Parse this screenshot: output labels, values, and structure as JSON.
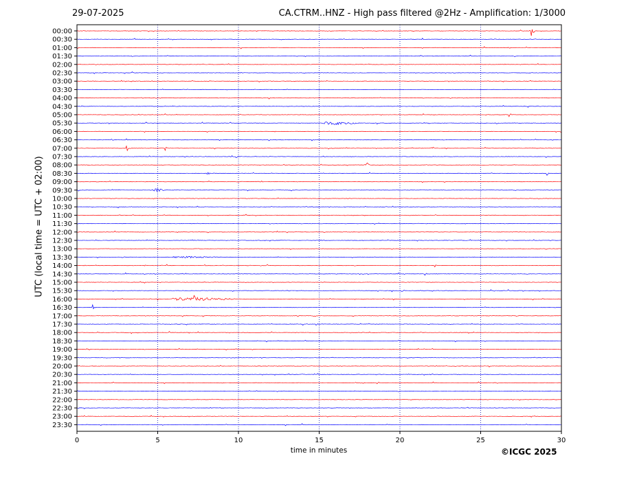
{
  "header": {
    "date": "29-07-2025",
    "title": "CA.CTRM..HNZ - High pass filtered @2Hz - Amplification: 1/3000"
  },
  "footer": {
    "copyright": "©ICGC 2025"
  },
  "colors": {
    "red_trace": "#ff0000",
    "blue_trace": "#0000ff",
    "grid": "#0000aa",
    "axes": "#000000"
  },
  "chart_data": {
    "type": "line",
    "title": "CA.CTRM..HNZ - High pass filtered @2Hz - Amplification: 1/3000",
    "xlabel": "time in minutes",
    "ylabel": "UTC (local time = UTC + 02:00)",
    "xlim": [
      0,
      30
    ],
    "x_ticks": [
      0,
      5,
      10,
      15,
      20,
      25,
      30
    ],
    "x_tick_labels": [
      "0",
      "5",
      "10",
      "15",
      "20",
      "25",
      "30"
    ],
    "vertical_grid_minutes": [
      5,
      10,
      15,
      20,
      25
    ],
    "grid_style": "dotted",
    "rows": [
      "00:00",
      "00:30",
      "01:00",
      "01:30",
      "02:00",
      "02:30",
      "03:00",
      "03:30",
      "04:00",
      "04:30",
      "05:00",
      "05:30",
      "06:00",
      "06:30",
      "07:00",
      "07:30",
      "08:00",
      "08:30",
      "09:00",
      "09:30",
      "10:00",
      "10:30",
      "11:00",
      "11:30",
      "12:00",
      "12:30",
      "13:00",
      "13:30",
      "14:00",
      "14:30",
      "15:00",
      "15:30",
      "16:00",
      "16:30",
      "17:00",
      "17:30",
      "18:00",
      "18:30",
      "19:00",
      "19:30",
      "20:00",
      "20:30",
      "21:00",
      "21:30",
      "22:00",
      "22:30",
      "23:00",
      "23:30"
    ],
    "row_colors_cycle": [
      "red",
      "blue"
    ],
    "events": [
      {
        "row": "00:00",
        "minute": 28.2,
        "amplitude": 9
      },
      {
        "row": "05:00",
        "minute": 26.8,
        "amplitude": 3
      },
      {
        "row": "05:30",
        "minute": 15.3,
        "duration": 2.2,
        "amplitude": 2.5
      },
      {
        "row": "06:30",
        "minute": 2.2,
        "amplitude": 2
      },
      {
        "row": "07:00",
        "minute": 3.1,
        "amplitude": 4
      },
      {
        "row": "07:00",
        "minute": 5.5,
        "amplitude": 8
      },
      {
        "row": "08:00",
        "minute": 18.0,
        "amplitude": 3
      },
      {
        "row": "08:30",
        "minute": 8.1,
        "amplitude": 2.5
      },
      {
        "row": "08:30",
        "minute": 29.1,
        "amplitude": 3
      },
      {
        "row": "09:30",
        "minute": 4.6,
        "duration": 0.8,
        "amplitude": 2.5
      },
      {
        "row": "13:30",
        "minute": 6.0,
        "duration": 2.8,
        "amplitude": 1.5
      },
      {
        "row": "14:00",
        "minute": 22.2,
        "amplitude": 2.5
      },
      {
        "row": "14:30",
        "minute": 21.6,
        "amplitude": 2.5
      },
      {
        "row": "16:00",
        "minute": 6.0,
        "duration": 3.8,
        "amplitude": 2.5
      },
      {
        "row": "16:00",
        "minute": 7.3,
        "amplitude": 6
      },
      {
        "row": "16:30",
        "minute": 1.0,
        "amplitude": 4
      }
    ]
  }
}
